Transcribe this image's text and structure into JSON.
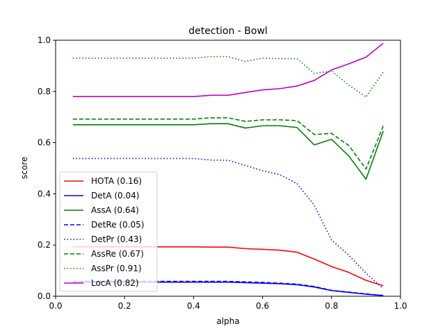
{
  "chart_data": {
    "type": "line",
    "title": "detection - Bowl",
    "xlabel": "alpha",
    "ylabel": "score",
    "xlim": [
      0.0,
      1.0
    ],
    "ylim": [
      0.0,
      1.0
    ],
    "xticks": [
      "0.0",
      "0.2",
      "0.4",
      "0.6",
      "0.8",
      "1.0"
    ],
    "yticks": [
      "0.0",
      "0.2",
      "0.4",
      "0.6",
      "0.8",
      "1.0"
    ],
    "grid": false,
    "legend_position": "lower-left",
    "x": [
      0.05,
      0.1,
      0.15,
      0.2,
      0.25,
      0.3,
      0.35,
      0.4,
      0.45,
      0.5,
      0.55,
      0.6,
      0.65,
      0.7,
      0.75,
      0.8,
      0.85,
      0.9,
      0.95
    ],
    "series": [
      {
        "name": "HOTA (0.16)",
        "color": "#ff0000",
        "dash": "solid",
        "values": [
          0.193,
          0.193,
          0.193,
          0.193,
          0.193,
          0.193,
          0.193,
          0.193,
          0.192,
          0.192,
          0.186,
          0.183,
          0.18,
          0.172,
          0.145,
          0.116,
          0.093,
          0.062,
          0.041
        ]
      },
      {
        "name": "DetA (0.04)",
        "color": "#0000ff",
        "dash": "solid",
        "values": [
          0.055,
          0.055,
          0.055,
          0.055,
          0.055,
          0.055,
          0.055,
          0.055,
          0.055,
          0.055,
          0.053,
          0.051,
          0.049,
          0.045,
          0.036,
          0.022,
          0.015,
          0.008,
          0.003
        ]
      },
      {
        "name": "AssA (0.64)",
        "color": "#008000",
        "dash": "solid",
        "values": [
          0.67,
          0.67,
          0.67,
          0.67,
          0.67,
          0.67,
          0.67,
          0.67,
          0.674,
          0.674,
          0.657,
          0.666,
          0.666,
          0.659,
          0.591,
          0.613,
          0.548,
          0.457,
          0.645
        ]
      },
      {
        "name": "DetRe (0.05)",
        "color": "#0000ff",
        "dash": "dashed",
        "values": [
          0.058,
          0.058,
          0.058,
          0.058,
          0.058,
          0.058,
          0.058,
          0.058,
          0.058,
          0.058,
          0.056,
          0.054,
          0.051,
          0.047,
          0.038,
          0.023,
          0.016,
          0.009,
          0.003
        ]
      },
      {
        "name": "DetPr (0.43)",
        "color": "#0000ff",
        "dash": "dotted",
        "values": [
          0.538,
          0.538,
          0.538,
          0.538,
          0.538,
          0.538,
          0.538,
          0.538,
          0.532,
          0.531,
          0.511,
          0.49,
          0.475,
          0.44,
          0.355,
          0.22,
          0.16,
          0.09,
          0.03
        ]
      },
      {
        "name": "AssRe (0.67)",
        "color": "#008000",
        "dash": "dashed",
        "values": [
          0.692,
          0.692,
          0.692,
          0.692,
          0.692,
          0.692,
          0.692,
          0.692,
          0.697,
          0.697,
          0.683,
          0.689,
          0.689,
          0.686,
          0.632,
          0.636,
          0.589,
          0.497,
          0.665
        ]
      },
      {
        "name": "AssPr (0.91)",
        "color": "#008000",
        "dash": "dotted",
        "values": [
          0.93,
          0.93,
          0.93,
          0.93,
          0.93,
          0.93,
          0.93,
          0.93,
          0.936,
          0.936,
          0.917,
          0.93,
          0.928,
          0.928,
          0.87,
          0.88,
          0.825,
          0.778,
          0.876
        ]
      },
      {
        "name": "LocA (0.82)",
        "color": "#bf00bf",
        "dash": "solid",
        "values": [
          0.78,
          0.78,
          0.78,
          0.78,
          0.78,
          0.78,
          0.78,
          0.78,
          0.785,
          0.785,
          0.796,
          0.806,
          0.811,
          0.821,
          0.843,
          0.884,
          0.908,
          0.934,
          0.988
        ]
      }
    ]
  }
}
